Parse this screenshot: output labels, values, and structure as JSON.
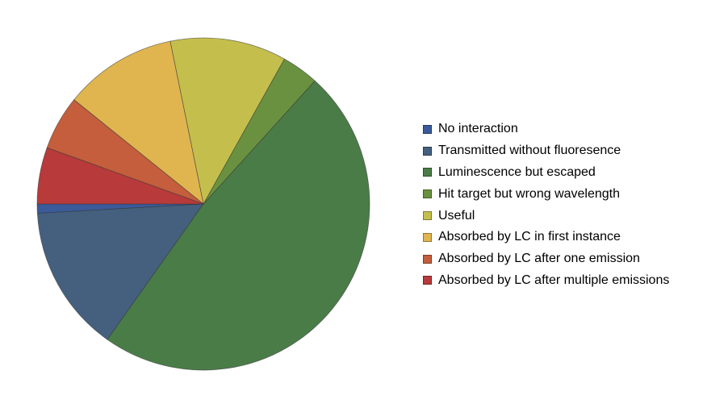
{
  "chart_data": {
    "type": "pie",
    "title": "",
    "legend_position": "right",
    "slices": [
      {
        "label": "No interaction",
        "value": 0.9,
        "color": "#3a5a9a"
      },
      {
        "label": "Transmitted without fluoresence",
        "value": 14.3,
        "color": "#44607e"
      },
      {
        "label": "Luminescence but escaped",
        "value": 48.1,
        "color": "#4a7c48"
      },
      {
        "label": "Hit target but wrong wavelength",
        "value": 3.6,
        "color": "#6a9140"
      },
      {
        "label": "Useful",
        "value": 11.3,
        "color": "#c4bf4c"
      },
      {
        "label": "Absorbed by LC in first instance",
        "value": 11.0,
        "color": "#e0b550"
      },
      {
        "label": "Absorbed by LC after one emission",
        "value": 5.3,
        "color": "#c45e3c"
      },
      {
        "label": "Absorbed by LC after multiple emissions",
        "value": 5.5,
        "color": "#b83a3a"
      }
    ]
  }
}
